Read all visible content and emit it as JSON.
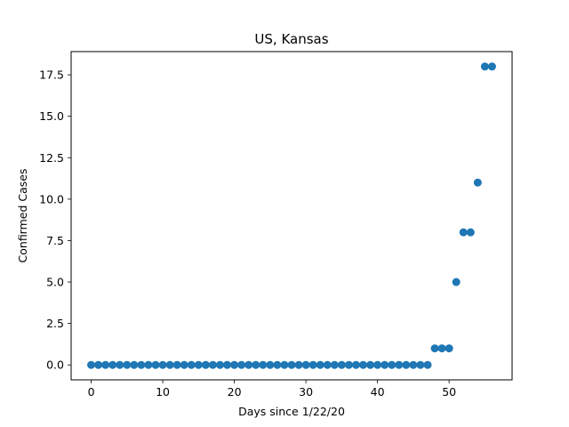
{
  "chart_data": {
    "type": "scatter",
    "title": "US, Kansas",
    "xlabel": "Days since 1/22/20",
    "ylabel": "Confirmed Cases",
    "xlim": [
      -2.8,
      58.8
    ],
    "ylim": [
      -0.9,
      18.9
    ],
    "xticks": [
      0,
      10,
      20,
      30,
      40,
      50
    ],
    "yticks": [
      0.0,
      2.5,
      5.0,
      7.5,
      10.0,
      12.5,
      15.0,
      17.5
    ],
    "ytick_labels": [
      "0.0",
      "2.5",
      "5.0",
      "7.5",
      "10.0",
      "12.5",
      "15.0",
      "17.5"
    ],
    "grid": false,
    "marker_color": "#1f77b4",
    "x": [
      0,
      1,
      2,
      3,
      4,
      5,
      6,
      7,
      8,
      9,
      10,
      11,
      12,
      13,
      14,
      15,
      16,
      17,
      18,
      19,
      20,
      21,
      22,
      23,
      24,
      25,
      26,
      27,
      28,
      29,
      30,
      31,
      32,
      33,
      34,
      35,
      36,
      37,
      38,
      39,
      40,
      41,
      42,
      43,
      44,
      45,
      46,
      47,
      48,
      49,
      50,
      51,
      52,
      53,
      54,
      55,
      56
    ],
    "y": [
      0,
      0,
      0,
      0,
      0,
      0,
      0,
      0,
      0,
      0,
      0,
      0,
      0,
      0,
      0,
      0,
      0,
      0,
      0,
      0,
      0,
      0,
      0,
      0,
      0,
      0,
      0,
      0,
      0,
      0,
      0,
      0,
      0,
      0,
      0,
      0,
      0,
      0,
      0,
      0,
      0,
      0,
      0,
      0,
      0,
      0,
      0,
      0,
      1,
      1,
      1,
      5,
      8,
      8,
      11,
      18,
      18
    ]
  }
}
